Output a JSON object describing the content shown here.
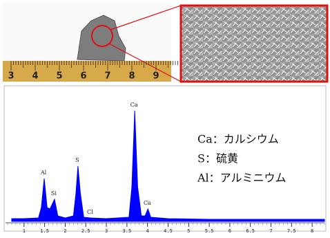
{
  "photo": {
    "ruler_labels": [
      3,
      4,
      5,
      6,
      7,
      8,
      9
    ]
  },
  "chart_data": {
    "type": "area",
    "x": [
      0.7,
      1.0,
      1.35,
      1.42,
      1.49,
      1.56,
      1.63,
      1.74,
      1.82,
      2.0,
      2.2,
      2.26,
      2.31,
      2.37,
      2.45,
      2.62,
      3.0,
      3.55,
      3.62,
      3.69,
      3.76,
      3.85,
      3.94,
      4.01,
      4.08,
      4.5,
      5.5,
      8.3
    ],
    "values": [
      4,
      4,
      5,
      20,
      62,
      20,
      18,
      32,
      8,
      5,
      8,
      40,
      80,
      40,
      6,
      5,
      4,
      6,
      50,
      160,
      50,
      8,
      8,
      18,
      6,
      4,
      3,
      3
    ],
    "color": "#0000ff",
    "xlim": [
      0.55,
      8.3
    ],
    "ylim": [
      0,
      170
    ],
    "xticks": [
      1,
      1.5,
      2,
      2.5,
      3,
      3.5,
      4,
      4.5,
      5,
      5.5,
      6,
      6.5,
      7,
      7.5,
      8
    ],
    "peak_labels": [
      {
        "text": "Al",
        "x": 1.49,
        "y": 62
      },
      {
        "text": "Si",
        "x": 1.74,
        "y": 32
      },
      {
        "text": "S",
        "x": 2.31,
        "y": 80
      },
      {
        "text": "Cl",
        "x": 2.62,
        "y": 5
      },
      {
        "text": "Ca",
        "x": 3.69,
        "y": 160
      },
      {
        "text": "Ca",
        "x": 4.01,
        "y": 18
      }
    ],
    "legend": [
      "Ca：カルシウム",
      "S：硫黄",
      "Al：アルミニウム"
    ]
  }
}
